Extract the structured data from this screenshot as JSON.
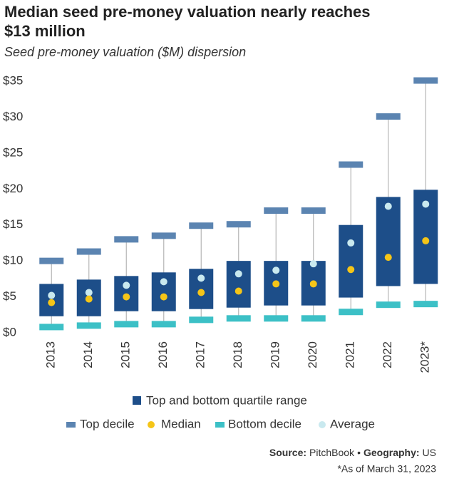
{
  "chart_data": {
    "type": "box",
    "title": [
      "Median seed pre-money valuation nearly reaches",
      "$13 million"
    ],
    "subtitle": "Seed pre-money valuation ($M) dispersion",
    "categories": [
      "2013",
      "2014",
      "2015",
      "2016",
      "2017",
      "2018",
      "2019",
      "2020",
      "2021",
      "2022",
      "2023*"
    ],
    "range": {
      "name": "Top and bottom quartile range",
      "color": "#1d4e89",
      "low": [
        2.3,
        2.3,
        3.0,
        3.0,
        3.3,
        3.5,
        3.8,
        3.8,
        4.9,
        6.5,
        6.8
      ],
      "high": [
        6.8,
        7.4,
        7.9,
        8.4,
        8.9,
        10.0,
        10.0,
        10.0,
        15.0,
        18.9,
        19.9
      ]
    },
    "series": [
      {
        "name": "Top decile",
        "color": "#5b84b1",
        "values": [
          10.0,
          11.3,
          13.0,
          13.5,
          14.9,
          15.1,
          17.0,
          17.0,
          23.4,
          30.1,
          35.1
        ]
      },
      {
        "name": "Median",
        "color": "#f5c518",
        "values": [
          4.2,
          4.7,
          5.0,
          5.0,
          5.6,
          5.8,
          6.8,
          6.8,
          8.8,
          10.5,
          12.8
        ]
      },
      {
        "name": "Bottom decile",
        "color": "#3cc0c6",
        "values": [
          0.8,
          1.0,
          1.2,
          1.2,
          1.8,
          2.0,
          2.0,
          2.0,
          2.9,
          3.9,
          4.0
        ]
      },
      {
        "name": "Average",
        "color": "#c9e9ef",
        "values": [
          5.2,
          5.6,
          6.6,
          7.1,
          7.6,
          8.2,
          8.7,
          9.6,
          12.5,
          17.6,
          17.9
        ]
      }
    ],
    "ylim": [
      0,
      35
    ],
    "yticks": [
      {
        "value": 0,
        "label": "$0"
      },
      {
        "value": 5,
        "label": "$5"
      },
      {
        "value": 10,
        "label": "$10"
      },
      {
        "value": 15,
        "label": "$15"
      },
      {
        "value": 20,
        "label": "$20"
      },
      {
        "value": 25,
        "label": "$25"
      },
      {
        "value": 30,
        "label": "$30"
      },
      {
        "value": 35,
        "label": "$35"
      }
    ],
    "whisker_color": "#b5b5b5",
    "source": {
      "label": "Source:",
      "value": "PitchBook"
    },
    "separator": "•",
    "geography": {
      "label": "Geography:",
      "value": "US"
    },
    "note": "*As of March 31, 2023"
  }
}
